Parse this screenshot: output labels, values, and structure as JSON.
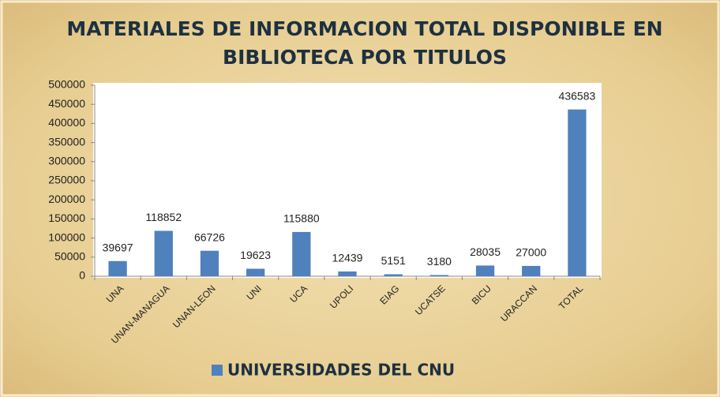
{
  "chart_data": {
    "type": "bar",
    "title": [
      "MATERIALES DE INFORMACION TOTAL DISPONIBLE EN",
      "BIBLIOTECA POR TITULOS"
    ],
    "categories": [
      "UNA",
      "UNAN-MANAGUA",
      "UNAN-LEON",
      "UNI",
      "UCA",
      "UPOLI",
      "EIAG",
      "UCATSE",
      "BICU",
      "URACCAN",
      "TOTAL"
    ],
    "series": [
      {
        "name": "UNIVERSIDADES DEL CNU",
        "color": "#4f81bd",
        "values": [
          39697,
          118852,
          66726,
          19623,
          115880,
          12439,
          5151,
          3180,
          28035,
          27000,
          436583
        ]
      }
    ],
    "ylim": [
      0,
      500000
    ],
    "yticks": [
      0,
      50000,
      100000,
      150000,
      200000,
      250000,
      300000,
      350000,
      400000,
      450000,
      500000
    ],
    "grid": false,
    "legend": "bottom"
  }
}
